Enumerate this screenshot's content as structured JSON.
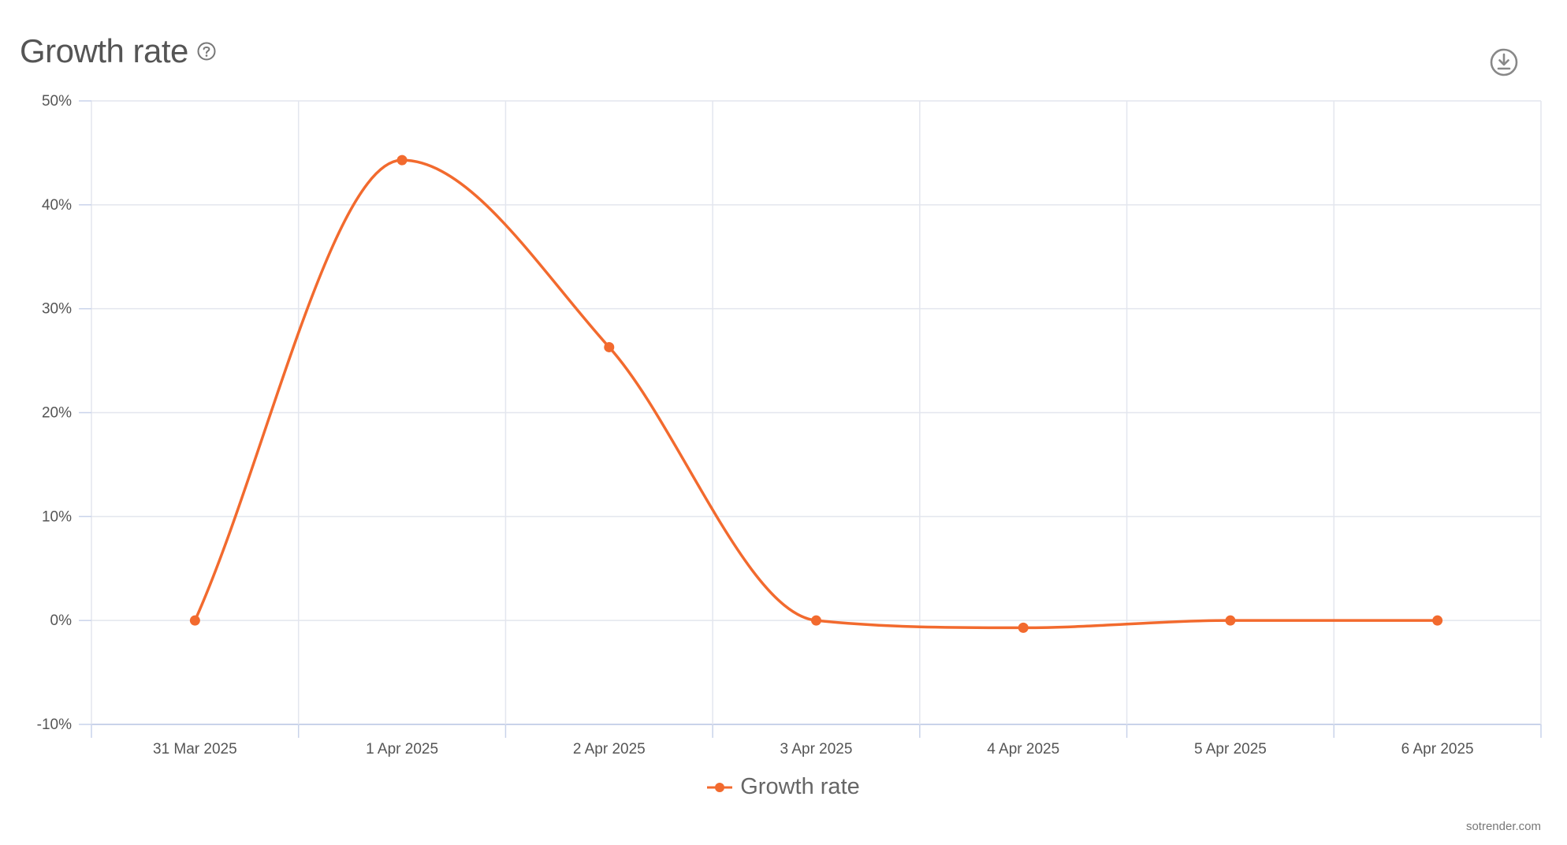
{
  "header": {
    "title": "Growth rate",
    "help_icon": "question-circle-icon",
    "download_icon": "download-circle-icon"
  },
  "colors": {
    "series": "#f26a2e",
    "grid": "#e3e6ee",
    "axis": "#c9d3ea",
    "tick_text": "#555555",
    "title_text": "#555555"
  },
  "chart_data": {
    "type": "line",
    "smooth": true,
    "title": "Growth rate",
    "xlabel": "",
    "ylabel": "",
    "categories": [
      "31 Mar 2025",
      "1 Apr 2025",
      "2 Apr 2025",
      "3 Apr 2025",
      "4 Apr 2025",
      "5 Apr 2025",
      "6 Apr 2025"
    ],
    "series": [
      {
        "name": "Growth rate",
        "values": [
          0,
          44.3,
          26.3,
          0,
          -0.7,
          0,
          0
        ]
      }
    ],
    "ylim": [
      -10,
      50
    ],
    "yticks": [
      50,
      40,
      30,
      20,
      10,
      0,
      -10
    ],
    "ytick_labels": [
      "50%",
      "40%",
      "30%",
      "20%",
      "10%",
      "0%",
      "-10%"
    ],
    "grid": true,
    "legend": "bottom-center"
  },
  "credit": "sotrender.com"
}
